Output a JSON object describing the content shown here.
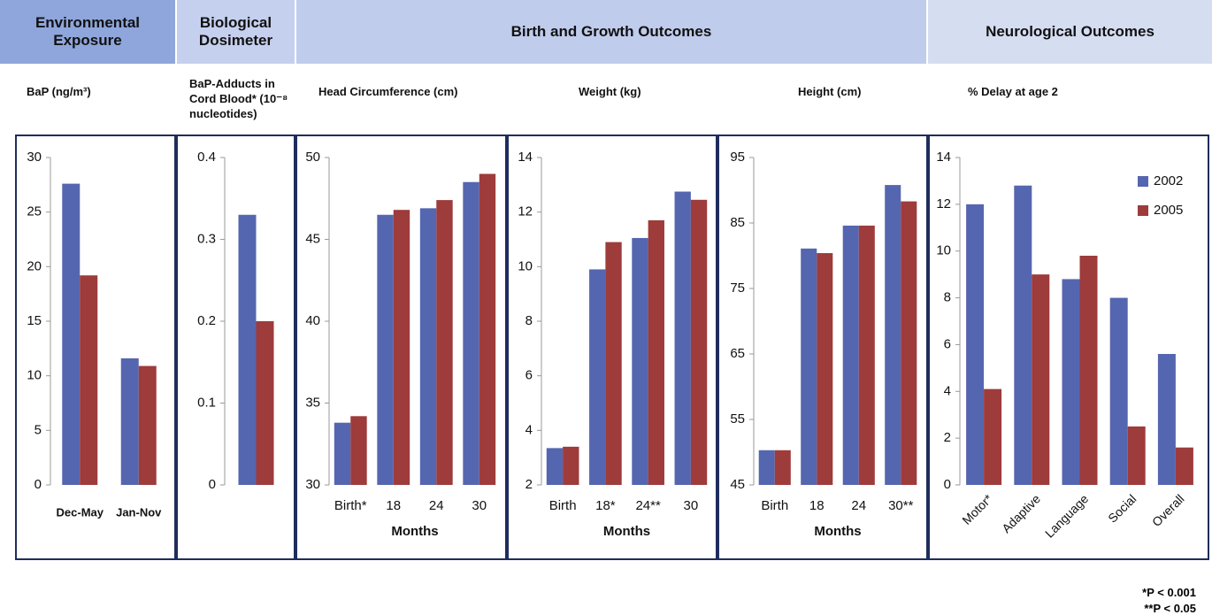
{
  "sections": [
    "Environmental Exposure",
    "Biological Dosimeter",
    "Birth and Growth Outcomes",
    "Neurological Outcomes"
  ],
  "footnotes": [
    "*P < 0.001",
    "**P < 0.05"
  ],
  "chart_data": [
    {
      "type": "bar",
      "title": "BaP (ng/m³)",
      "categories": [
        "Dec-May",
        "Jan-Nov"
      ],
      "series": [
        {
          "color": "#5566b0",
          "values": [
            27.6,
            11.6
          ]
        },
        {
          "color": "#9e3b3b",
          "values": [
            19.2,
            10.9
          ]
        }
      ],
      "ylim": [
        0,
        30
      ],
      "yticks": [
        0,
        5,
        10,
        15,
        20,
        25,
        30
      ]
    },
    {
      "type": "bar",
      "title": "BaP-Adducts in Cord Blood* (10⁻⁸ nucleotides)",
      "categories": [
        null
      ],
      "series": [
        {
          "color": "#5566b0",
          "values": [
            0.33
          ]
        },
        {
          "color": "#9e3b3b",
          "values": [
            0.2
          ]
        }
      ],
      "ylim": [
        0,
        0.4
      ],
      "yticks": [
        0,
        0.1,
        0.2,
        0.3,
        0.4
      ]
    },
    {
      "type": "bar",
      "title": "Head Circumference (cm)",
      "x_label": "Months",
      "categories": [
        "Birth*",
        "18",
        "24",
        "30"
      ],
      "series": [
        {
          "color": "#5566b0",
          "values": [
            33.8,
            46.5,
            46.9,
            48.5
          ]
        },
        {
          "color": "#9e3b3b",
          "values": [
            34.2,
            46.8,
            47.4,
            49.0
          ]
        }
      ],
      "ylim": [
        30,
        50
      ],
      "yticks": [
        30,
        35,
        40,
        45,
        50
      ]
    },
    {
      "type": "bar",
      "title": "Weight (kg)",
      "x_label": "Months",
      "categories": [
        "Birth",
        "18*",
        "24**",
        "30"
      ],
      "series": [
        {
          "color": "#5566b0",
          "values": [
            3.35,
            9.9,
            11.05,
            12.75
          ]
        },
        {
          "color": "#9e3b3b",
          "values": [
            3.4,
            10.9,
            11.7,
            12.45
          ]
        }
      ],
      "ylim": [
        2,
        14
      ],
      "yticks": [
        2,
        4,
        6,
        8,
        10,
        12,
        14
      ]
    },
    {
      "type": "bar",
      "title": "Height (cm)",
      "x_label": "Months",
      "categories": [
        "Birth",
        "18",
        "24",
        "30**"
      ],
      "series": [
        {
          "color": "#5566b0",
          "values": [
            50.3,
            81.1,
            84.6,
            90.8
          ]
        },
        {
          "color": "#9e3b3b",
          "values": [
            50.3,
            80.4,
            84.6,
            88.3
          ]
        }
      ],
      "ylim": [
        45,
        95
      ],
      "yticks": [
        45,
        55,
        65,
        75,
        85,
        95
      ]
    },
    {
      "type": "bar",
      "title": "% Delay at age 2",
      "categories": [
        "Motor*",
        "Adaptive",
        "Language",
        "Social",
        "Overall"
      ],
      "series": [
        {
          "name": "2002",
          "color": "#5566b0",
          "values": [
            12,
            12.8,
            8.8,
            8,
            5.6
          ]
        },
        {
          "name": "2005",
          "color": "#9e3b3b",
          "values": [
            4.1,
            9,
            9.8,
            2.5,
            1.6
          ]
        }
      ],
      "ylim": [
        0,
        14
      ],
      "yticks": [
        0,
        2,
        4,
        6,
        8,
        10,
        12,
        14
      ],
      "legend": "upper right"
    }
  ]
}
